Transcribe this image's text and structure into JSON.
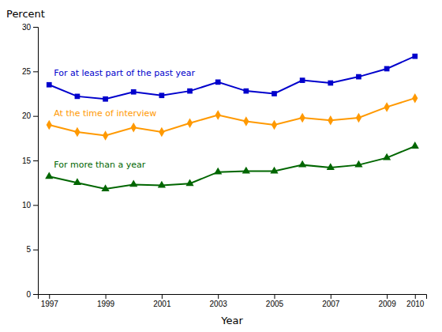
{
  "chart_data": {
    "type": "line",
    "x_label": "Year",
    "y_label": "Percent",
    "x": [
      1997,
      1998,
      1999,
      2000,
      2001,
      2002,
      2003,
      2004,
      2005,
      2006,
      2007,
      2008,
      2009,
      2010
    ],
    "series": [
      {
        "name": "For at least part of the past year",
        "color": "#0000CC",
        "marker": "square",
        "values": [
          23.5,
          22.2,
          21.9,
          22.7,
          22.3,
          22.8,
          23.8,
          22.8,
          22.5,
          24.0,
          23.7,
          24.4,
          25.3,
          26.7
        ]
      },
      {
        "name": "At the time of interview",
        "color": "#FF9900",
        "marker": "diamond",
        "values": [
          19.0,
          18.2,
          17.8,
          18.7,
          18.2,
          19.2,
          20.1,
          19.4,
          19.0,
          19.8,
          19.5,
          19.8,
          21.0,
          22.0
        ]
      },
      {
        "name": "For more than a year",
        "color": "#006600",
        "marker": "triangle",
        "values": [
          13.2,
          12.5,
          11.8,
          12.3,
          12.2,
          12.4,
          13.7,
          13.8,
          13.8,
          14.5,
          14.2,
          14.5,
          15.3,
          16.6
        ]
      }
    ],
    "xlim": [
      1996.6,
      2010.4
    ],
    "xticks": [
      1997,
      1999,
      2001,
      2003,
      2005,
      2007,
      2009,
      2010
    ],
    "ylim": [
      0,
      30
    ],
    "yticks": [
      0,
      5,
      10,
      15,
      20,
      25,
      30
    ],
    "grid": false
  }
}
